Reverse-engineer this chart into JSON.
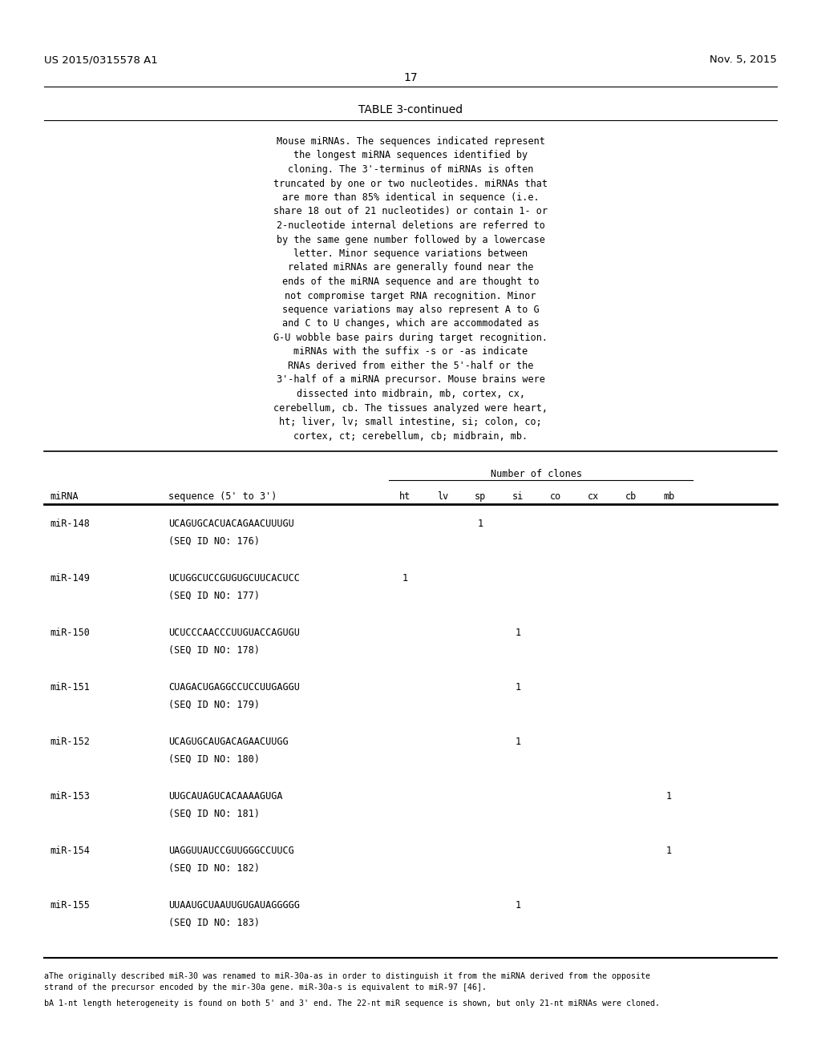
{
  "page_number": "17",
  "header_left": "US 2015/0315578 A1",
  "header_right": "Nov. 5, 2015",
  "table_title": "TABLE 3-continued",
  "description_text": [
    "Mouse miRNAs. The sequences indicated represent",
    "the longest miRNA sequences identified by",
    "cloning. The 3'-terminus of miRNAs is often",
    "truncated by one or two nucleotides. miRNAs that",
    "are more than 85% identical in sequence (i.e.",
    "share 18 out of 21 nucleotides) or contain 1- or",
    "2-nucleotide internal deletions are referred to",
    "by the same gene number followed by a lowercase",
    "letter. Minor sequence variations between",
    "related miRNAs are generally found near the",
    "ends of the miRNA sequence and are thought to",
    "not compromise target RNA recognition. Minor",
    "sequence variations may also represent A to G",
    "and C to U changes, which are accommodated as",
    "G-U wobble base pairs during target recognition.",
    "miRNAs with the suffix -s or -as indicate",
    "RNAs derived from either the 5'-half or the",
    "3'-half of a miRNA precursor. Mouse brains were",
    "dissected into midbrain, mb, cortex, cx,",
    "cerebellum, cb. The tissues analyzed were heart,",
    "ht; liver, lv; small intestine, si; colon, co;",
    "cortex, ct; cerebellum, cb; midbrain, mb."
  ],
  "col_header_group": "Number of clones",
  "rows": [
    {
      "mirna": "miR-148",
      "sequence": "UCAGUGCACUACAGAACUUUGU",
      "seq_id": "(SEQ ID NO: 176)",
      "ht": "",
      "lv": "",
      "sp": "1",
      "si": "",
      "co": "",
      "cx": "",
      "cb": "",
      "mb": ""
    },
    {
      "mirna": "miR-149",
      "sequence": "UCUGGCUCCGUGUGCUUCACUCC",
      "seq_id": "(SEQ ID NO: 177)",
      "ht": "1",
      "lv": "",
      "sp": "",
      "si": "",
      "co": "",
      "cx": "",
      "cb": "",
      "mb": ""
    },
    {
      "mirna": "miR-150",
      "sequence": "UCUCCCAACCCUUGUACCAGUGU",
      "seq_id": "(SEQ ID NO: 178)",
      "ht": "",
      "lv": "",
      "sp": "",
      "si": "1",
      "co": "",
      "cx": "",
      "cb": "",
      "mb": ""
    },
    {
      "mirna": "miR-151",
      "sequence": "CUAGACUGAGGCCUCCUUGAGGU",
      "seq_id": "(SEQ ID NO: 179)",
      "ht": "",
      "lv": "",
      "sp": "",
      "si": "1",
      "co": "",
      "cx": "",
      "cb": "",
      "mb": ""
    },
    {
      "mirna": "miR-152",
      "sequence": "UCAGUGCAUGACAGAACUUGG",
      "seq_id": "(SEQ ID NO: 180)",
      "ht": "",
      "lv": "",
      "sp": "",
      "si": "1",
      "co": "",
      "cx": "",
      "cb": "",
      "mb": ""
    },
    {
      "mirna": "miR-153",
      "sequence": "UUGCAUAGUCACAAAAGUGA",
      "seq_id": "(SEQ ID NO: 181)",
      "ht": "",
      "lv": "",
      "sp": "",
      "si": "",
      "co": "",
      "cx": "",
      "cb": "",
      "mb": "1"
    },
    {
      "mirna": "miR-154",
      "sequence": "UAGGUUAUCCGUUGGGCCUUCG",
      "seq_id": "(SEQ ID NO: 182)",
      "ht": "",
      "lv": "",
      "sp": "",
      "si": "",
      "co": "",
      "cx": "",
      "cb": "",
      "mb": "1"
    },
    {
      "mirna": "miR-155",
      "sequence": "UUAAUGCUAAUUGUGAUAGGGGG",
      "seq_id": "(SEQ ID NO: 183)",
      "ht": "",
      "lv": "",
      "sp": "",
      "si": "1",
      "co": "",
      "cx": "",
      "cb": "",
      "mb": ""
    }
  ],
  "footnote_a": "aThe originally described miR-30 was renamed to miR-30a-as in order to distinguish it from the miRNA derived from the opposite",
  "footnote_a2": "strand of the precursor encoded by the mir-30a gene. miR-30a-s is equivalent to miR-97 [46].",
  "footnote_b": "bA 1-nt length heterogeneity is found on both 5' and 3' end. The 22-nt miR sequence is shown, but only 21-nt miRNAs were cloned.",
  "bg_color": "#ffffff"
}
